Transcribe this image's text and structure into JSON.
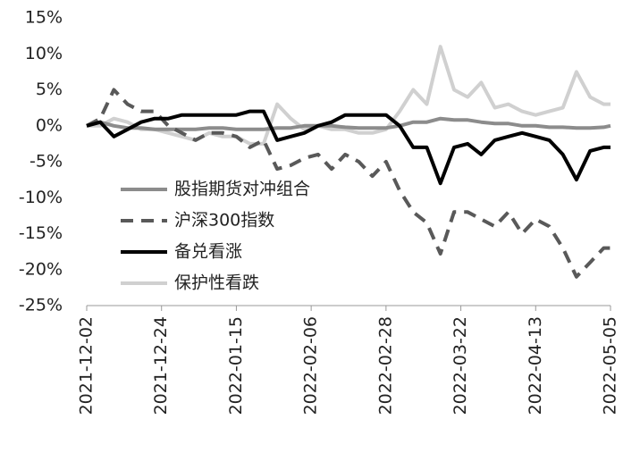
{
  "chart_data": {
    "type": "line",
    "x": [
      "2021-12-02",
      "2021-12-06",
      "2021-12-10",
      "2021-12-14",
      "2021-12-18",
      "2021-12-22",
      "2021-12-26",
      "2021-12-30",
      "2022-01-03",
      "2022-01-07",
      "2022-01-11",
      "2022-01-15",
      "2022-01-19",
      "2022-01-23",
      "2022-01-27",
      "2022-01-31",
      "2022-02-04",
      "2022-02-08",
      "2022-02-12",
      "2022-02-16",
      "2022-02-20",
      "2022-02-24",
      "2022-02-28",
      "2022-03-04",
      "2022-03-08",
      "2022-03-12",
      "2022-03-16",
      "2022-03-20",
      "2022-03-24",
      "2022-03-28",
      "2022-04-01",
      "2022-04-05",
      "2022-04-09",
      "2022-04-13",
      "2022-04-17",
      "2022-04-21",
      "2022-04-25",
      "2022-04-29",
      "2022-05-03",
      "2022-05-05"
    ],
    "xlim": [
      "2021-12-02",
      "2022-05-05"
    ],
    "xticks": [
      "2021-12-02",
      "2021-12-24",
      "2022-01-15",
      "2022-02-06",
      "2022-02-28",
      "2022-03-22",
      "2022-04-13",
      "2022-05-05"
    ],
    "ylim": [
      -25,
      15
    ],
    "yticks": [
      {
        "value": -25,
        "label": "-25%"
      },
      {
        "value": -20,
        "label": "-20%"
      },
      {
        "value": -15,
        "label": "-15%"
      },
      {
        "value": -10,
        "label": "-10%"
      },
      {
        "value": -5,
        "label": "-5%"
      },
      {
        "value": 0,
        "label": "0%"
      },
      {
        "value": 5,
        "label": "5%"
      },
      {
        "value": 10,
        "label": "10%"
      },
      {
        "value": 15,
        "label": "15%"
      }
    ],
    "legend": "lower-left",
    "series": [
      {
        "name": "股指期货对冲组合",
        "color": "#8c8c8c",
        "dashed": false,
        "values": [
          0,
          0.5,
          0,
          -0.3,
          -0.3,
          -0.5,
          -0.5,
          -0.5,
          -0.5,
          -0.3,
          -0.3,
          -0.5,
          -0.5,
          -0.5,
          -0.3,
          -0.3,
          0,
          0,
          0,
          -0.2,
          -0.3,
          -0.3,
          -0.3,
          0,
          0.5,
          0.5,
          1,
          0.8,
          0.8,
          0.5,
          0.3,
          0.3,
          0,
          0,
          -0.2,
          -0.2,
          -0.3,
          -0.3,
          -0.2,
          0
        ]
      },
      {
        "name": "沪深300指数",
        "color": "#595959",
        "dashed": true,
        "values": [
          0,
          1,
          5,
          3,
          2,
          2,
          0,
          -1,
          -2,
          -1,
          -1,
          -1.5,
          -3,
          -2,
          -6,
          -5.5,
          -4.5,
          -4,
          -6,
          -4,
          -5,
          -7,
          -5,
          -9,
          -12,
          -13.5,
          -17.8,
          -12,
          -12,
          -13,
          -14,
          -12,
          -15,
          -13,
          -14,
          -17,
          -21,
          -19,
          -17,
          -17
        ]
      },
      {
        "name": "备兑看涨",
        "color": "#000000",
        "dashed": false,
        "values": [
          0,
          0.5,
          -1.5,
          -0.5,
          0.5,
          1,
          1,
          1.5,
          1.5,
          1.5,
          1.5,
          1.5,
          2,
          2,
          -2,
          -1.5,
          -1,
          0,
          0.5,
          1.5,
          1.5,
          1.5,
          1.5,
          0,
          -3,
          -3,
          -8,
          -3,
          -2.5,
          -4,
          -2,
          -1.5,
          -1,
          -1.5,
          -2,
          -4,
          -7.5,
          -3.5,
          -3,
          -3
        ]
      },
      {
        "name": "保护性看跌",
        "color": "#d0d0d0",
        "dashed": false,
        "values": [
          0,
          0,
          1,
          0.5,
          -0.5,
          -0.5,
          -1,
          -1.5,
          -2,
          -1,
          -1.5,
          -1.5,
          -2.5,
          -2.5,
          3,
          1,
          -0.5,
          0,
          -0.5,
          -0.5,
          -1,
          -1,
          -0.5,
          2,
          5,
          3,
          11,
          5,
          4,
          6,
          2.5,
          3,
          2,
          1.5,
          2,
          2.5,
          7.5,
          4,
          3,
          3
        ]
      }
    ]
  }
}
